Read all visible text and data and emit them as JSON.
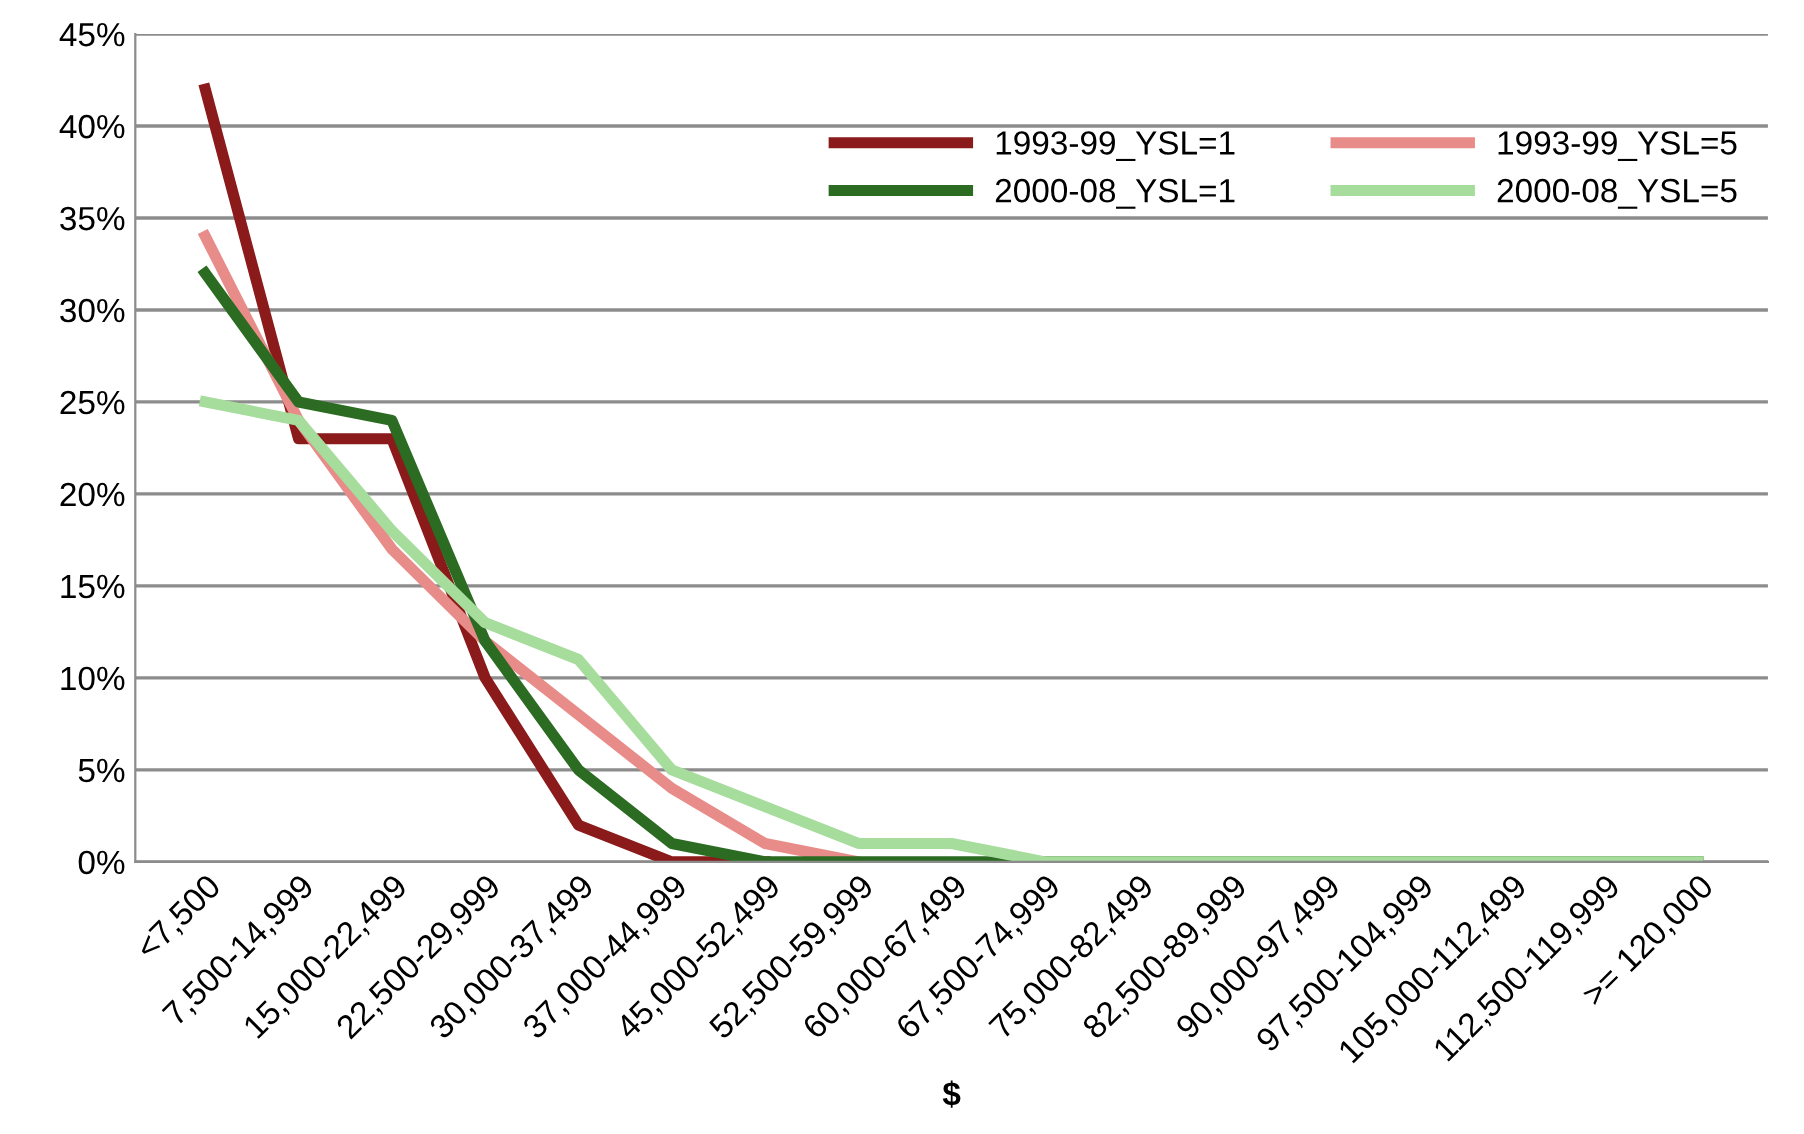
{
  "chart_data": {
    "type": "line",
    "xlabel": "$",
    "categories": [
      "<7,500",
      "7,500-14,999",
      "15,000-22,499",
      "22,500-29,999",
      "30,000-37,499",
      "37,000-44,999",
      "45,000-52,499",
      "52,500-59,999",
      "60,000-67,499",
      "67,500-74,999",
      "75,000-82,499",
      "82,500-89,999",
      "90,000-97,499",
      "97,500-104,999",
      "105,000-112,499",
      "112,500-119,999",
      ">= 120,000"
    ],
    "series": [
      {
        "name": "1993-99_YSL=1",
        "color": "#8b1a1a",
        "values": [
          42,
          23,
          23,
          10,
          2,
          0,
          0,
          null,
          null,
          null,
          null,
          null,
          null,
          null,
          null,
          null,
          null
        ]
      },
      {
        "name": "1993-99_YSL=5",
        "color": "#e88c8a",
        "values": [
          34,
          24,
          17,
          12,
          8,
          4,
          1,
          0,
          null,
          null,
          null,
          null,
          null,
          null,
          null,
          null,
          null
        ]
      },
      {
        "name": "2000-08_YSL=1",
        "color": "#2b6b22",
        "values": [
          32,
          25,
          24,
          12,
          5,
          1,
          0,
          0,
          0,
          0,
          0,
          0,
          0,
          0,
          0,
          0,
          0
        ]
      },
      {
        "name": "2000-08_YSL=5",
        "color": "#a6dc9c",
        "values": [
          25,
          24,
          18,
          13,
          11,
          5,
          3,
          1,
          1,
          0,
          0,
          0,
          0,
          0,
          0,
          0,
          0
        ]
      }
    ],
    "ylim": [
      0,
      45
    ],
    "yticks": [
      {
        "value": 0,
        "label": "0%"
      },
      {
        "value": 5,
        "label": "5%"
      },
      {
        "value": 10,
        "label": "10%"
      },
      {
        "value": 15,
        "label": "15%"
      },
      {
        "value": 20,
        "label": "20%"
      },
      {
        "value": 25,
        "label": "25%"
      },
      {
        "value": 30,
        "label": "30%"
      },
      {
        "value": 35,
        "label": "35%"
      },
      {
        "value": 40,
        "label": "40%"
      },
      {
        "value": 45,
        "label": "45%"
      }
    ],
    "grid": "y",
    "legend": "top right",
    "marker": "none",
    "line_style": "solid"
  }
}
